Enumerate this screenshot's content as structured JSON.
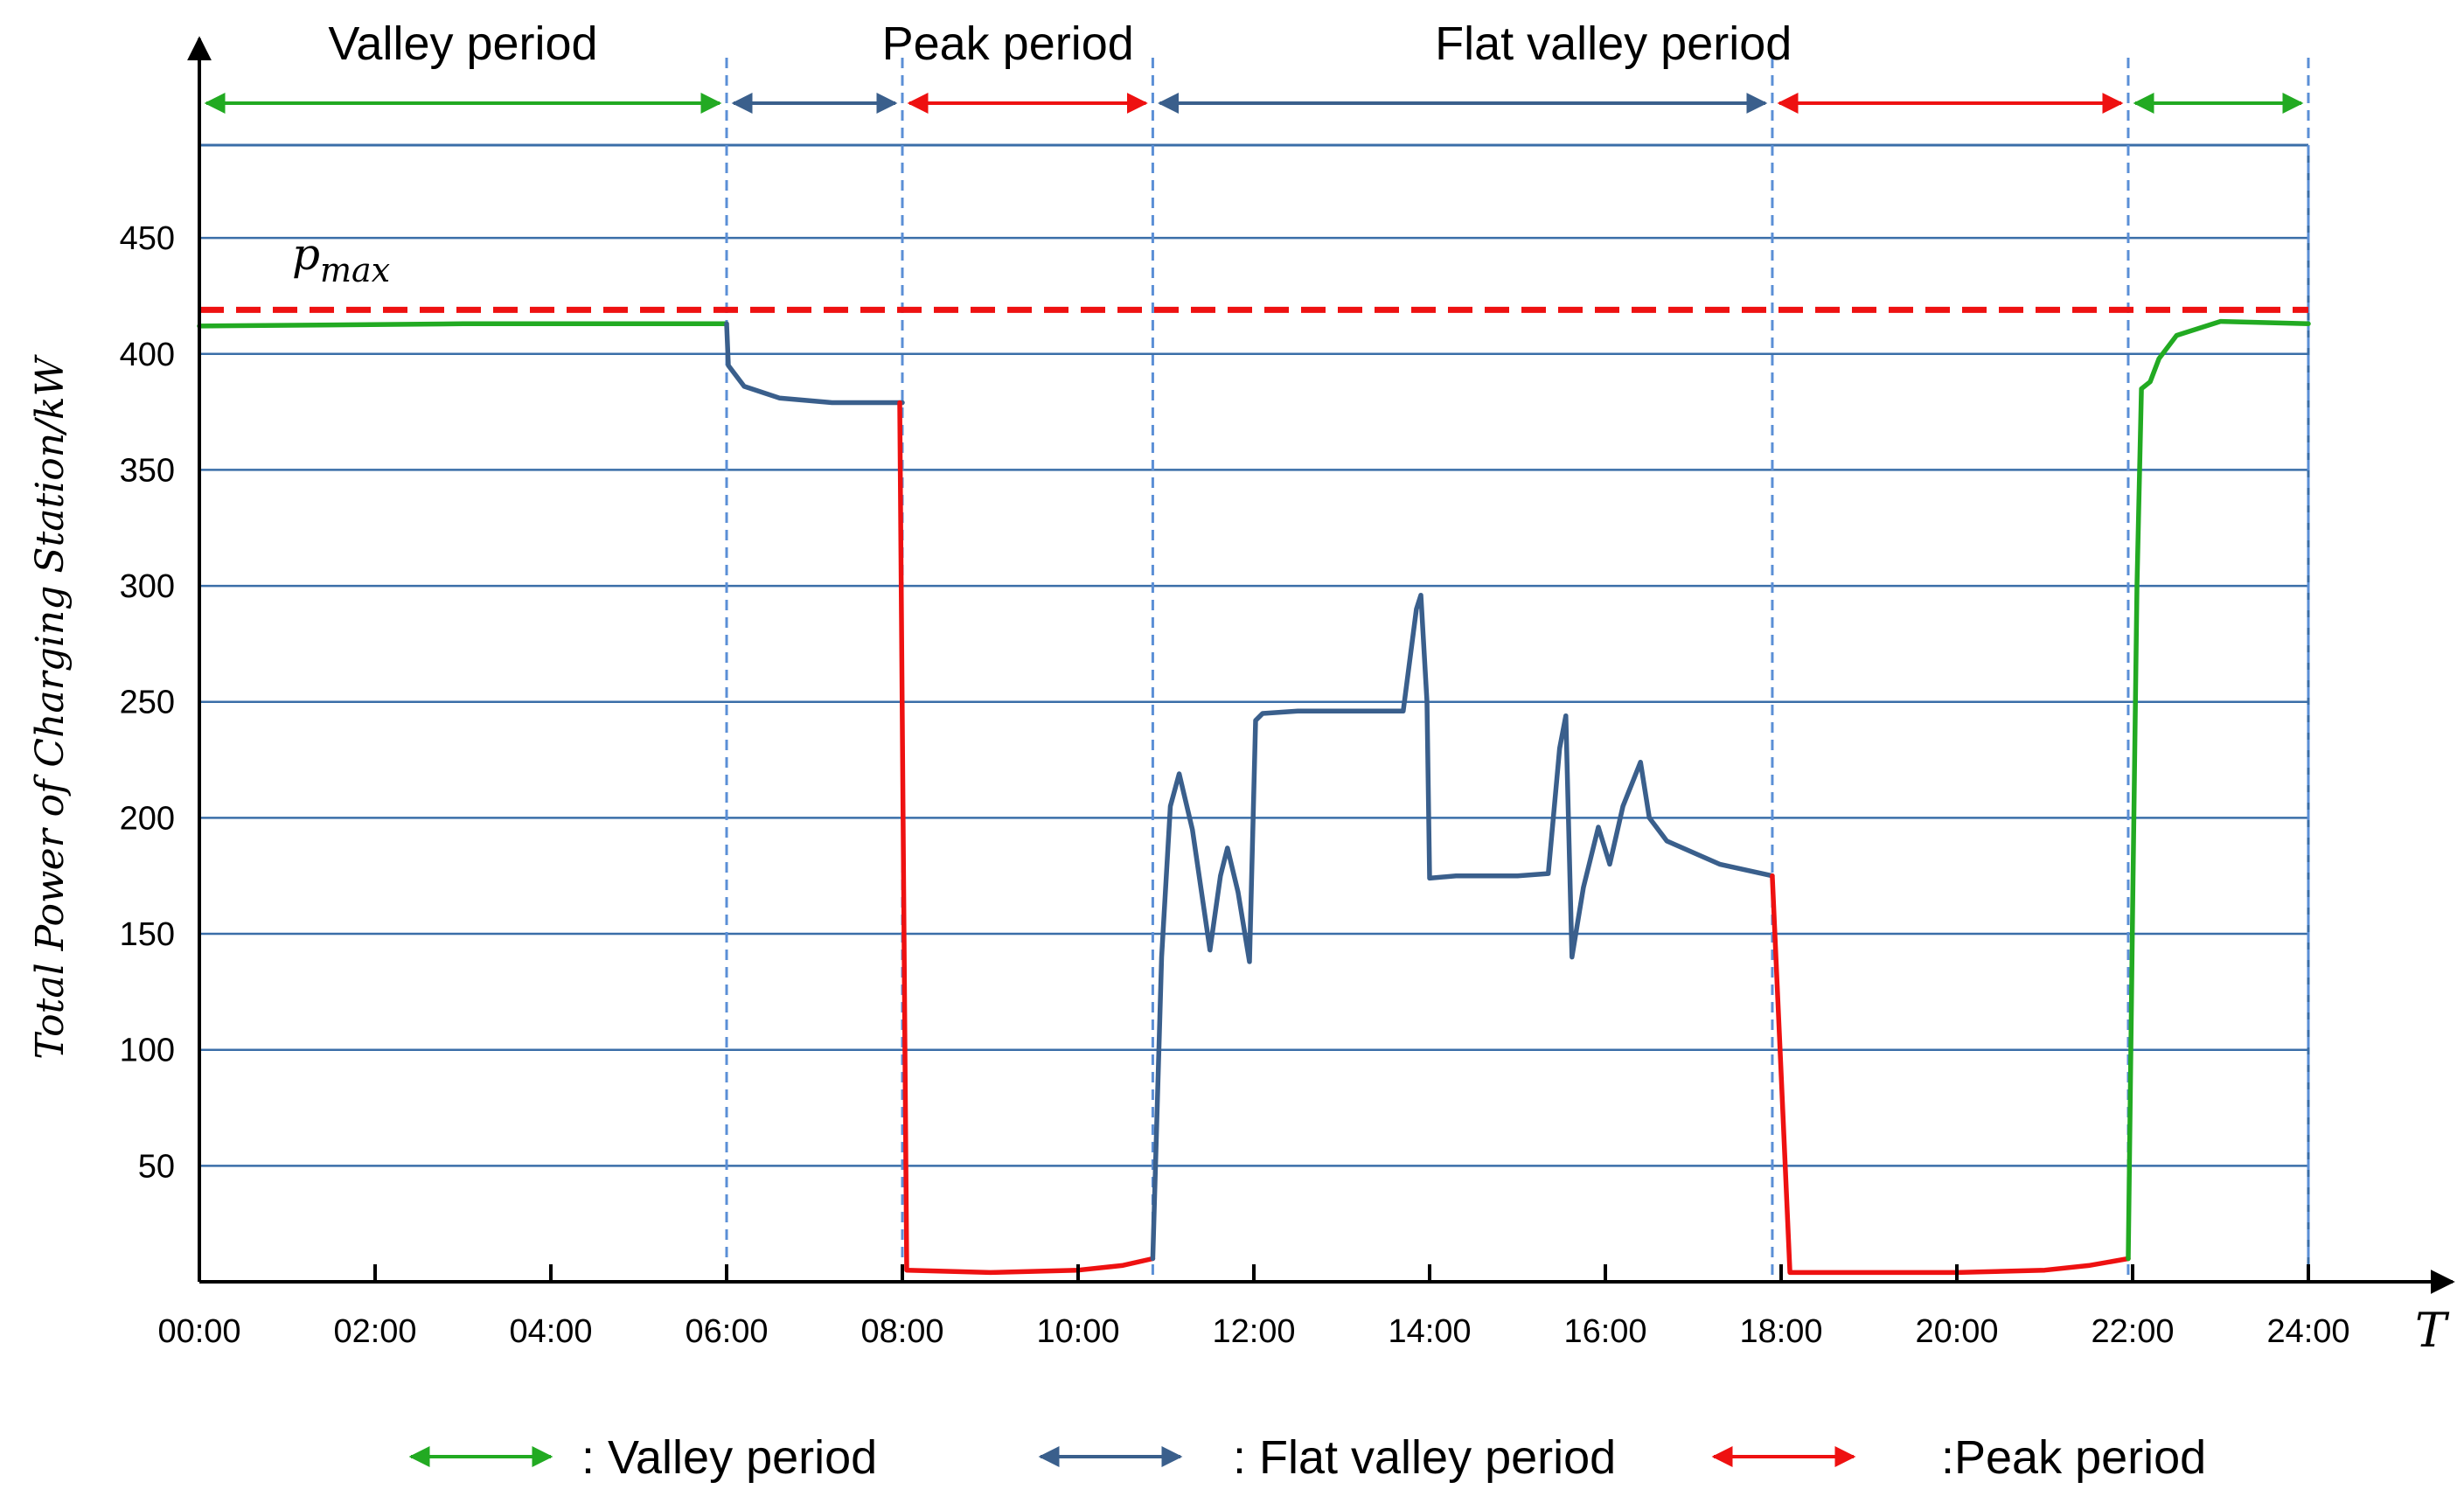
{
  "chart_data": {
    "type": "line",
    "ylabel": "Total Power of Charging Station/kW",
    "xlabel": "T",
    "xlim": [
      0,
      24
    ],
    "ylim": [
      0,
      490
    ],
    "x_ticks": [
      0,
      2,
      4,
      6,
      8,
      10,
      12,
      14,
      16,
      18,
      20,
      22,
      24
    ],
    "x_tick_labels": [
      "00:00",
      "02:00",
      "04:00",
      "06:00",
      "08:00",
      "10:00",
      "12:00",
      "14:00",
      "16:00",
      "18:00",
      "20:00",
      "22:00",
      "24:00"
    ],
    "y_ticks": [
      50,
      100,
      150,
      200,
      250,
      300,
      350,
      400,
      450
    ],
    "y_tick_labels": [
      "50",
      "100",
      "150",
      "200",
      "250",
      "300",
      "350",
      "400",
      "450"
    ],
    "grid": "horizontal",
    "pmax": {
      "label_main": "p",
      "label_sub": "max",
      "value": 419,
      "color": "#ee1111"
    },
    "period_boundaries": [
      6,
      8,
      10.85,
      17.9,
      21.95,
      24
    ],
    "period_labels": [
      {
        "text": "Valley period",
        "x": 3
      },
      {
        "text": "Peak period",
        "x": 9.4
      },
      {
        "text": "Flat valley period",
        "x": 14.4
      }
    ],
    "period_arrows": [
      {
        "from": 0,
        "to": 6,
        "kind": "valley"
      },
      {
        "from": 6,
        "to": 8,
        "kind": "flat"
      },
      {
        "from": 8,
        "to": 10.85,
        "kind": "peak"
      },
      {
        "from": 10.85,
        "to": 17.9,
        "kind": "flat"
      },
      {
        "from": 17.9,
        "to": 21.95,
        "kind": "peak"
      },
      {
        "from": 21.95,
        "to": 24,
        "kind": "valley"
      }
    ],
    "colors": {
      "valley": "#22aa22",
      "flat": "#3a5f8c",
      "peak": "#ee1111",
      "grid": "#3a6ea8",
      "boundary": "#5b8fd6"
    },
    "series": [
      {
        "kind": "valley",
        "points": [
          [
            0,
            412
          ],
          [
            3,
            413
          ],
          [
            6,
            413
          ]
        ]
      },
      {
        "kind": "flat",
        "points": [
          [
            6,
            413
          ],
          [
            6.02,
            395
          ],
          [
            6.2,
            386
          ],
          [
            6.6,
            381
          ],
          [
            7.2,
            379
          ],
          [
            8,
            379
          ]
        ]
      },
      {
        "kind": "peak",
        "points": [
          [
            7.97,
            379
          ],
          [
            8.05,
            5
          ],
          [
            9,
            4
          ],
          [
            10,
            5
          ],
          [
            10.5,
            7
          ],
          [
            10.85,
            10
          ]
        ]
      },
      {
        "kind": "flat",
        "points": [
          [
            10.85,
            10
          ],
          [
            10.95,
            140
          ],
          [
            11.05,
            205
          ],
          [
            11.15,
            219
          ],
          [
            11.3,
            195
          ],
          [
            11.5,
            143
          ],
          [
            11.62,
            175
          ],
          [
            11.7,
            187
          ],
          [
            11.82,
            168
          ],
          [
            11.95,
            138
          ],
          [
            12.02,
            242
          ],
          [
            12.1,
            245
          ],
          [
            12.5,
            246
          ],
          [
            13.3,
            246
          ],
          [
            13.7,
            246
          ],
          [
            13.85,
            290
          ],
          [
            13.9,
            296
          ],
          [
            13.97,
            250
          ],
          [
            14.0,
            174
          ],
          [
            14.3,
            175
          ],
          [
            15.0,
            175
          ],
          [
            15.35,
            176
          ],
          [
            15.48,
            230
          ],
          [
            15.55,
            244
          ],
          [
            15.62,
            140
          ],
          [
            15.75,
            170
          ],
          [
            15.92,
            196
          ],
          [
            16.05,
            180
          ],
          [
            16.2,
            205
          ],
          [
            16.4,
            224
          ],
          [
            16.5,
            200
          ],
          [
            16.7,
            190
          ],
          [
            17.3,
            180
          ],
          [
            17.9,
            175
          ]
        ]
      },
      {
        "kind": "peak",
        "points": [
          [
            17.9,
            175
          ],
          [
            18.0,
            90
          ],
          [
            18.1,
            4
          ],
          [
            19,
            4
          ],
          [
            20,
            4
          ],
          [
            21,
            5
          ],
          [
            21.5,
            7
          ],
          [
            21.95,
            10
          ]
        ]
      },
      {
        "kind": "valley",
        "points": [
          [
            21.95,
            10
          ],
          [
            22.0,
            160
          ],
          [
            22.05,
            300
          ],
          [
            22.1,
            385
          ],
          [
            22.2,
            388
          ],
          [
            22.3,
            398
          ],
          [
            22.5,
            408
          ],
          [
            23,
            414
          ],
          [
            24,
            413
          ]
        ]
      }
    ],
    "legend": [
      {
        "kind": "valley",
        "label": ": Valley period"
      },
      {
        "kind": "flat",
        "label": ": Flat valley period"
      },
      {
        "kind": "peak",
        "label": ":Peak period"
      }
    ]
  }
}
